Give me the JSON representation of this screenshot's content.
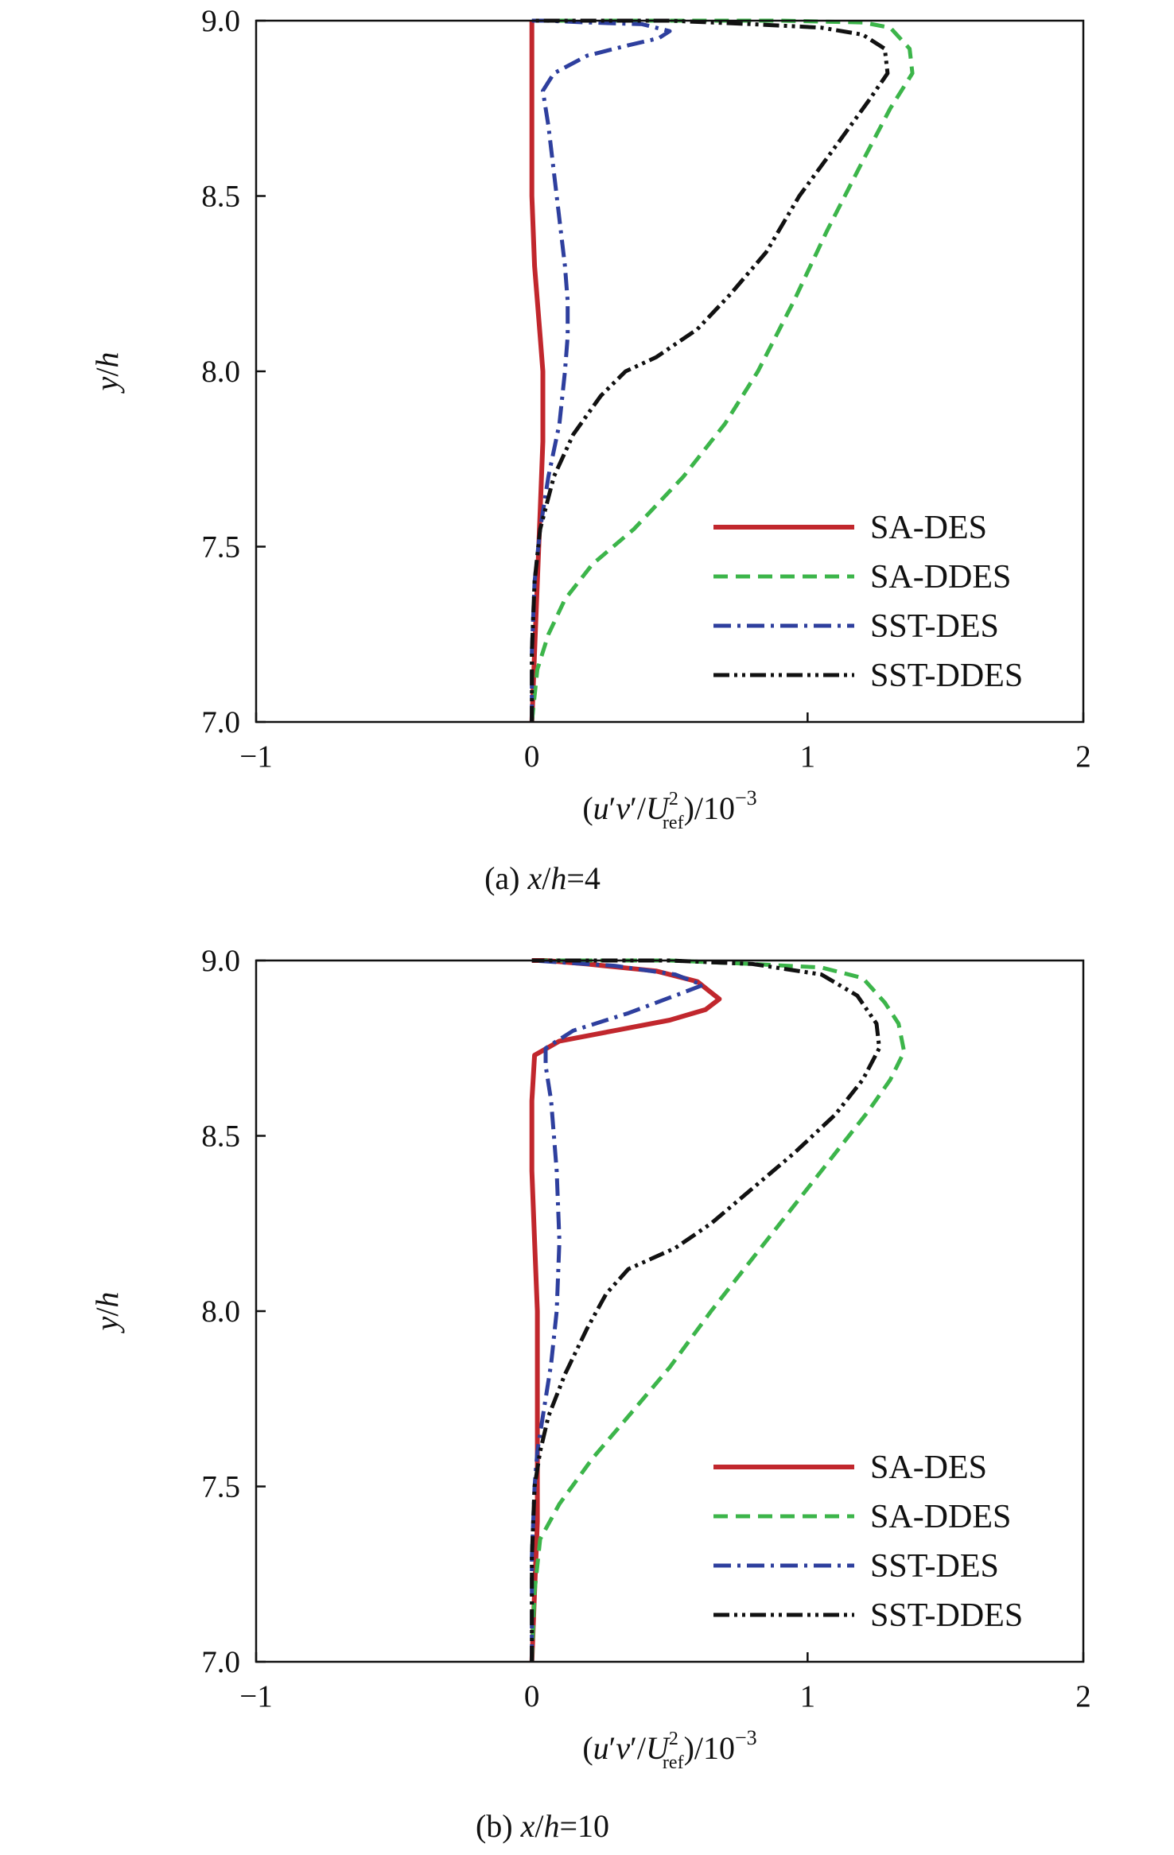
{
  "chart_data": [
    {
      "type": "line",
      "caption": {
        "prefix": "(a) ",
        "var": "x",
        "sep": "/",
        "var2": "h",
        "suffix": "=4"
      },
      "xlabel": {
        "open": "(",
        "u": "u",
        "prime1": "′",
        "v": "v",
        "prime2": "′",
        "slash": "/",
        "U": "U",
        "sup": "2",
        "sub": "ref",
        "rest": ")/10",
        "exp": "−3"
      },
      "ylabel": {
        "var": "y",
        "sep": "/",
        "var2": "h"
      },
      "xlim": [
        -1,
        2
      ],
      "ylim": [
        7.0,
        9.0
      ],
      "xticks": [
        {
          "v": -1,
          "label": "−1"
        },
        {
          "v": 0,
          "label": "0"
        },
        {
          "v": 1,
          "label": "1"
        },
        {
          "v": 2,
          "label": "2"
        }
      ],
      "yticks": [
        {
          "v": 7.0,
          "label": "7.0"
        },
        {
          "v": 7.5,
          "label": "7.5"
        },
        {
          "v": 8.0,
          "label": "8.0"
        },
        {
          "v": 8.5,
          "label": "8.5"
        },
        {
          "v": 9.0,
          "label": "9.0"
        }
      ],
      "legend_position": "lower-right",
      "series": [
        {
          "name": "SA-DES",
          "color": "#c1272d",
          "style": "solid",
          "points": [
            [
              0.0,
              7.0
            ],
            [
              0.01,
              7.2
            ],
            [
              0.02,
              7.4
            ],
            [
              0.03,
              7.6
            ],
            [
              0.04,
              7.8
            ],
            [
              0.04,
              8.0
            ],
            [
              0.03,
              8.1
            ],
            [
              0.02,
              8.2
            ],
            [
              0.01,
              8.3
            ],
            [
              0.0,
              8.5
            ],
            [
              0.0,
              8.7
            ],
            [
              0.0,
              8.9
            ],
            [
              0.0,
              9.0
            ]
          ]
        },
        {
          "name": "SA-DDES",
          "color": "#3cb54a",
          "style": "dashed",
          "points": [
            [
              0.0,
              7.0
            ],
            [
              0.02,
              7.15
            ],
            [
              0.06,
              7.25
            ],
            [
              0.12,
              7.35
            ],
            [
              0.22,
              7.45
            ],
            [
              0.37,
              7.55
            ],
            [
              0.55,
              7.7
            ],
            [
              0.7,
              7.85
            ],
            [
              0.82,
              8.0
            ],
            [
              0.95,
              8.2
            ],
            [
              1.07,
              8.4
            ],
            [
              1.2,
              8.6
            ],
            [
              1.3,
              8.75
            ],
            [
              1.38,
              8.85
            ],
            [
              1.37,
              8.92
            ],
            [
              1.3,
              8.98
            ],
            [
              1.2,
              8.995
            ],
            [
              0.9,
              9.0
            ],
            [
              0.5,
              9.0
            ],
            [
              0.0,
              9.0
            ]
          ]
        },
        {
          "name": "SST-DES",
          "color": "#2e3f9e",
          "style": "dashdot",
          "points": [
            [
              0.0,
              7.0
            ],
            [
              0.0,
              7.2
            ],
            [
              0.01,
              7.4
            ],
            [
              0.03,
              7.55
            ],
            [
              0.06,
              7.7
            ],
            [
              0.1,
              7.85
            ],
            [
              0.12,
              8.0
            ],
            [
              0.13,
              8.1
            ],
            [
              0.13,
              8.2
            ],
            [
              0.12,
              8.3
            ],
            [
              0.09,
              8.5
            ],
            [
              0.06,
              8.7
            ],
            [
              0.04,
              8.8
            ],
            [
              0.08,
              8.85
            ],
            [
              0.2,
              8.9
            ],
            [
              0.35,
              8.93
            ],
            [
              0.46,
              8.95
            ],
            [
              0.5,
              8.97
            ],
            [
              0.4,
              8.99
            ],
            [
              0.2,
              8.995
            ],
            [
              0.05,
              9.0
            ],
            [
              0.0,
              9.0
            ]
          ]
        },
        {
          "name": "SST-DDES",
          "color": "#111111",
          "style": "dashdotdot",
          "points": [
            [
              0.0,
              7.0
            ],
            [
              0.0,
              7.2
            ],
            [
              0.01,
              7.4
            ],
            [
              0.03,
              7.55
            ],
            [
              0.08,
              7.7
            ],
            [
              0.15,
              7.82
            ],
            [
              0.25,
              7.93
            ],
            [
              0.34,
              8.0
            ],
            [
              0.45,
              8.04
            ],
            [
              0.6,
              8.12
            ],
            [
              0.72,
              8.22
            ],
            [
              0.85,
              8.34
            ],
            [
              0.97,
              8.5
            ],
            [
              1.1,
              8.64
            ],
            [
              1.22,
              8.77
            ],
            [
              1.29,
              8.85
            ],
            [
              1.28,
              8.92
            ],
            [
              1.2,
              8.96
            ],
            [
              1.05,
              8.98
            ],
            [
              0.8,
              8.99
            ],
            [
              0.5,
              9.0
            ],
            [
              0.0,
              9.0
            ]
          ]
        }
      ]
    },
    {
      "type": "line",
      "caption": {
        "prefix": "(b) ",
        "var": "x",
        "sep": "/",
        "var2": "h",
        "suffix": "=10"
      },
      "xlabel": {
        "open": "(",
        "u": "u",
        "prime1": "′",
        "v": "v",
        "prime2": "′",
        "slash": "/",
        "U": "U",
        "sup": "2",
        "sub": "ref",
        "rest": ")/10",
        "exp": "−3"
      },
      "ylabel": {
        "var": "y",
        "sep": "/",
        "var2": "h"
      },
      "xlim": [
        -1,
        2
      ],
      "ylim": [
        7.0,
        9.0
      ],
      "xticks": [
        {
          "v": -1,
          "label": "−1"
        },
        {
          "v": 0,
          "label": "0"
        },
        {
          "v": 1,
          "label": "1"
        },
        {
          "v": 2,
          "label": "2"
        }
      ],
      "yticks": [
        {
          "v": 7.0,
          "label": "7.0"
        },
        {
          "v": 7.5,
          "label": "7.5"
        },
        {
          "v": 8.0,
          "label": "8.0"
        },
        {
          "v": 8.5,
          "label": "8.5"
        },
        {
          "v": 9.0,
          "label": "9.0"
        }
      ],
      "legend_position": "lower-right",
      "series": [
        {
          "name": "SA-DES",
          "color": "#c1272d",
          "style": "solid",
          "points": [
            [
              0.0,
              7.0
            ],
            [
              0.01,
              7.2
            ],
            [
              0.02,
              7.4
            ],
            [
              0.02,
              7.6
            ],
            [
              0.02,
              7.8
            ],
            [
              0.02,
              8.0
            ],
            [
              0.01,
              8.2
            ],
            [
              0.0,
              8.4
            ],
            [
              0.0,
              8.6
            ],
            [
              0.01,
              8.73
            ],
            [
              0.1,
              8.77
            ],
            [
              0.3,
              8.8
            ],
            [
              0.5,
              8.83
            ],
            [
              0.63,
              8.86
            ],
            [
              0.68,
              8.89
            ],
            [
              0.6,
              8.94
            ],
            [
              0.45,
              8.97
            ],
            [
              0.2,
              8.99
            ],
            [
              0.05,
              9.0
            ],
            [
              0.0,
              9.0
            ]
          ]
        },
        {
          "name": "SA-DDES",
          "color": "#3cb54a",
          "style": "dashed",
          "points": [
            [
              0.0,
              7.0
            ],
            [
              0.01,
              7.2
            ],
            [
              0.03,
              7.35
            ],
            [
              0.1,
              7.45
            ],
            [
              0.22,
              7.58
            ],
            [
              0.35,
              7.7
            ],
            [
              0.5,
              7.84
            ],
            [
              0.65,
              8.0
            ],
            [
              0.8,
              8.15
            ],
            [
              0.95,
              8.3
            ],
            [
              1.1,
              8.45
            ],
            [
              1.22,
              8.57
            ],
            [
              1.3,
              8.66
            ],
            [
              1.35,
              8.74
            ],
            [
              1.33,
              8.82
            ],
            [
              1.28,
              8.88
            ],
            [
              1.2,
              8.95
            ],
            [
              1.05,
              8.98
            ],
            [
              0.8,
              8.99
            ],
            [
              0.5,
              9.0
            ],
            [
              0.0,
              9.0
            ]
          ]
        },
        {
          "name": "SST-DES",
          "color": "#2e3f9e",
          "style": "dashdot",
          "points": [
            [
              0.0,
              7.0
            ],
            [
              0.0,
              7.3
            ],
            [
              0.01,
              7.5
            ],
            [
              0.02,
              7.6
            ],
            [
              0.04,
              7.7
            ],
            [
              0.07,
              7.85
            ],
            [
              0.09,
              8.0
            ],
            [
              0.1,
              8.2
            ],
            [
              0.09,
              8.4
            ],
            [
              0.07,
              8.6
            ],
            [
              0.05,
              8.7
            ],
            [
              0.05,
              8.75
            ],
            [
              0.15,
              8.8
            ],
            [
              0.35,
              8.85
            ],
            [
              0.52,
              8.9
            ],
            [
              0.62,
              8.93
            ],
            [
              0.52,
              8.96
            ],
            [
              0.3,
              8.985
            ],
            [
              0.1,
              8.995
            ],
            [
              0.0,
              9.0
            ]
          ]
        },
        {
          "name": "SST-DDES",
          "color": "#111111",
          "style": "dashdotdot",
          "points": [
            [
              0.0,
              7.0
            ],
            [
              0.0,
              7.3
            ],
            [
              0.01,
              7.5
            ],
            [
              0.03,
              7.6
            ],
            [
              0.06,
              7.7
            ],
            [
              0.12,
              7.82
            ],
            [
              0.2,
              7.95
            ],
            [
              0.27,
              8.05
            ],
            [
              0.35,
              8.12
            ],
            [
              0.52,
              8.18
            ],
            [
              0.65,
              8.25
            ],
            [
              0.8,
              8.35
            ],
            [
              0.95,
              8.45
            ],
            [
              1.1,
              8.56
            ],
            [
              1.2,
              8.66
            ],
            [
              1.26,
              8.75
            ],
            [
              1.25,
              8.82
            ],
            [
              1.18,
              8.9
            ],
            [
              1.05,
              8.96
            ],
            [
              0.8,
              8.99
            ],
            [
              0.5,
              9.0
            ],
            [
              0.0,
              9.0
            ]
          ]
        }
      ]
    }
  ]
}
